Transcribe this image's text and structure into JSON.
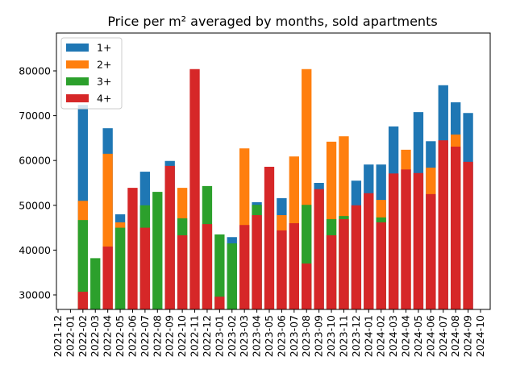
{
  "chart_data": {
    "type": "bar",
    "title": "Price per m² averaged by months, sold apartments",
    "categories": [
      "2021-12",
      "2022-01",
      "2022-02",
      "2022-03",
      "2022-04",
      "2022-05",
      "2022-06",
      "2022-07",
      "2022-08",
      "2022-09",
      "2022-10",
      "2022-11",
      "2022-12",
      "2023-01",
      "2023-02",
      "2023-03",
      "2023-04",
      "2023-05",
      "2023-06",
      "2023-07",
      "2023-08",
      "2023-09",
      "2023-10",
      "2023-11",
      "2023-12",
      "2024-01",
      "2024-02",
      "2024-03",
      "2024-04",
      "2024-05",
      "2024-06",
      "2024-07",
      "2024-08",
      "2024-09",
      "2024-10"
    ],
    "series": [
      {
        "name": "1+",
        "color": "#1f77b4",
        "values": [
          null,
          null,
          72400,
          null,
          67200,
          48000,
          null,
          57500,
          null,
          59900,
          null,
          null,
          null,
          null,
          42900,
          null,
          50700,
          null,
          51600,
          null,
          null,
          55000,
          null,
          null,
          55500,
          59100,
          59100,
          67600,
          null,
          70800,
          64300,
          76800,
          73000,
          70600,
          null
        ]
      },
      {
        "name": "2+",
        "color": "#ff7f0e",
        "values": [
          null,
          null,
          51000,
          null,
          61500,
          46200,
          null,
          null,
          null,
          null,
          53900,
          null,
          null,
          null,
          null,
          62700,
          null,
          null,
          47800,
          60900,
          80400,
          null,
          64200,
          65400,
          null,
          null,
          51200,
          null,
          62400,
          null,
          58400,
          null,
          65800,
          null,
          null
        ]
      },
      {
        "name": "3+",
        "color": "#2ca02c",
        "values": [
          null,
          null,
          46700,
          38200,
          null,
          45000,
          null,
          50000,
          53000,
          null,
          47100,
          null,
          54300,
          43500,
          41500,
          null,
          50100,
          null,
          null,
          null,
          50100,
          null,
          46900,
          47600,
          null,
          null,
          47300,
          null,
          null,
          null,
          null,
          null,
          null,
          null,
          null
        ]
      },
      {
        "name": "4+",
        "color": "#d62728",
        "values": [
          null,
          null,
          30700,
          null,
          40800,
          null,
          53900,
          45000,
          null,
          58800,
          43300,
          80400,
          45800,
          29600,
          null,
          45600,
          47800,
          58600,
          44400,
          46000,
          37000,
          53600,
          43300,
          46900,
          50000,
          52700,
          46200,
          57100,
          58000,
          57200,
          52500,
          64500,
          63100,
          59700,
          null
        ]
      }
    ],
    "ylim": [
      26760,
      88450
    ],
    "yticks": [
      30000,
      40000,
      50000,
      60000,
      70000,
      80000
    ],
    "legend": "upper left"
  }
}
